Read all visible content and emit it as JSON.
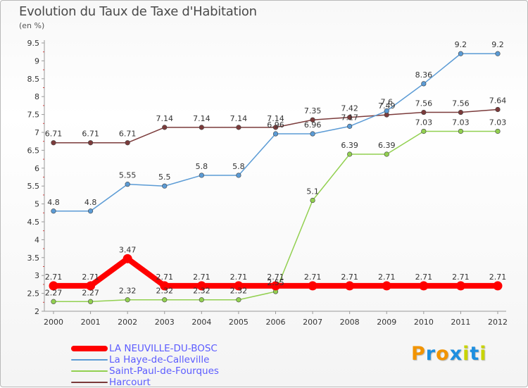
{
  "chart_data": {
    "type": "line",
    "title": "Evolution du Taux de Taxe d'Habitation",
    "ylabel": "(en %)",
    "xlabel": "",
    "categories": [
      "2000",
      "2001",
      "2002",
      "2003",
      "2004",
      "2005",
      "2006",
      "2007",
      "2008",
      "2009",
      "2010",
      "2011",
      "2012"
    ],
    "ylim": [
      2,
      9.5
    ],
    "yticks": [
      "2",
      "2.5",
      "3",
      "3.5",
      "4",
      "4.5",
      "5",
      "5.5",
      "6",
      "6.5",
      "7",
      "7.5",
      "8",
      "8.5",
      "9",
      "9.5"
    ],
    "grid": false,
    "series": [
      {
        "name": "LA NEUVILLE-DU-BOSC",
        "color": "#ff0000",
        "values": [
          2.71,
          2.71,
          3.47,
          2.71,
          2.71,
          2.71,
          2.71,
          2.71,
          2.71,
          2.71,
          2.71,
          2.71,
          2.71
        ],
        "labels": [
          "2.71",
          "2.71",
          "3.47",
          "2.71",
          "2.71",
          "2.71",
          "2.71",
          "2.71",
          "2.71",
          "2.71",
          "2.71",
          "2.71",
          "2.71"
        ]
      },
      {
        "name": "La Haye-de-Calleville",
        "color": "#5b9bd5",
        "values": [
          4.8,
          4.8,
          5.55,
          5.5,
          5.8,
          5.8,
          6.96,
          6.96,
          7.17,
          7.6,
          8.36,
          9.2,
          9.2
        ],
        "labels": [
          "4.8",
          "4.8",
          "5.55",
          "5.5",
          "5.8",
          "5.8",
          "6.96",
          "6.96",
          "7.17",
          "7.6",
          "8.36",
          "9.2",
          "9.2"
        ]
      },
      {
        "name": "Saint-Paul-de-Fourques",
        "color": "#92d050",
        "values": [
          2.27,
          2.27,
          2.32,
          2.32,
          2.32,
          2.32,
          2.55,
          5.1,
          6.39,
          6.39,
          7.03,
          7.03,
          7.03
        ],
        "labels": [
          "2.27",
          "2.27",
          "2.32",
          "2.32",
          "2.32",
          "2.32",
          "2.55",
          "5.1",
          "6.39",
          "6.39",
          "7.03",
          "7.03",
          "7.03"
        ]
      },
      {
        "name": "Harcourt",
        "color": "#7b3b3b",
        "values": [
          6.71,
          6.71,
          6.71,
          7.14,
          7.14,
          7.14,
          7.14,
          7.35,
          7.42,
          7.49,
          7.56,
          7.56,
          7.64
        ],
        "labels": [
          "6.71",
          "6.71",
          "6.71",
          "7.14",
          "7.14",
          "7.14",
          "7.14",
          "7.35",
          "7.42",
          "7.49",
          "7.56",
          "7.56",
          "7.64"
        ]
      }
    ],
    "legend_position": "bottom-left"
  },
  "branding": {
    "logo_letters": [
      "P",
      "r",
      "o",
      "x",
      "i",
      "t",
      "i"
    ],
    "logo_colors": [
      "#f29400",
      "#1d8fe0",
      "#f29400",
      "#1d8fe0",
      "#c8d400",
      "#1d8fe0",
      "#c8d400"
    ]
  }
}
